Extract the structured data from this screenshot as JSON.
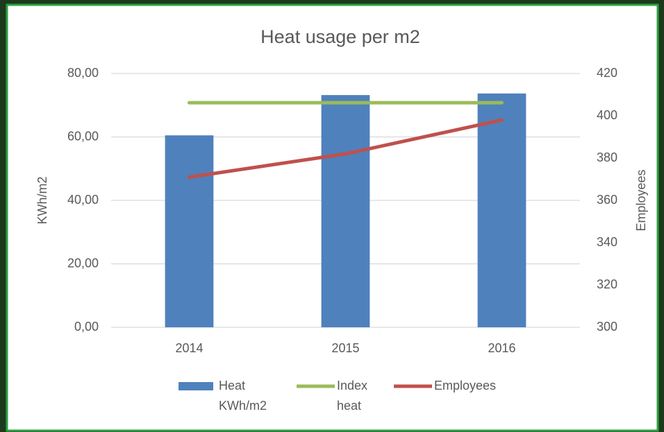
{
  "chart_data": {
    "type": "bar",
    "title": "Heat usage per m2",
    "y_label": "KWh/m2",
    "y2_label": "Employees",
    "categories": [
      "2014",
      "2015",
      "2016"
    ],
    "series": [
      {
        "name": "Heat KWh/m2",
        "type": "bar",
        "color": "#4f81bd",
        "values": [
          60.5,
          73.2,
          73.7
        ]
      },
      {
        "name": "Index heat",
        "type": "line",
        "color": "#9bbb59",
        "values": [
          70.8,
          70.8,
          70.8
        ]
      },
      {
        "name": "Employees",
        "type": "line",
        "color": "#c0504d",
        "axis": "y2",
        "values": [
          371,
          382,
          398
        ]
      }
    ],
    "ylim": [
      0,
      80
    ],
    "yticks": [
      {
        "value": 0,
        "label": "0,00"
      },
      {
        "value": 20,
        "label": "20,00"
      },
      {
        "value": 40,
        "label": "40,00"
      },
      {
        "value": 60,
        "label": "60,00"
      },
      {
        "value": 80,
        "label": "80,00"
      }
    ],
    "y2lim": [
      300,
      420
    ],
    "y2ticks": [
      300,
      320,
      340,
      360,
      380,
      400,
      420
    ],
    "grid": true,
    "legend": "bottom"
  }
}
